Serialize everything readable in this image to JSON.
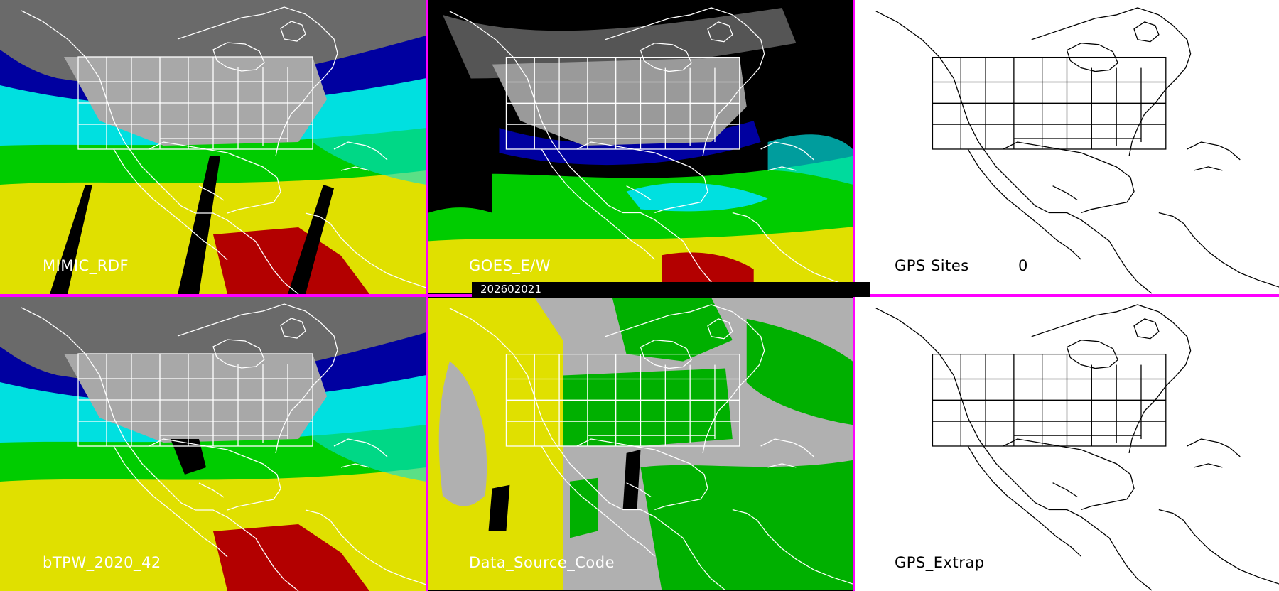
{
  "colors": {
    "divider": "#ff00ff",
    "ocean_low": "#b30000",
    "ocean_mid": "#e0e000",
    "ocean_green": "#00cc00",
    "ocean_cyan": "#00e0e0",
    "ocean_blue": "#0000a0",
    "land_gray": "#9a9a9a",
    "dsc_gray": "#b0b0b0",
    "dsc_yellow": "#e0e000",
    "dsc_green": "#00b000"
  },
  "panels": {
    "mimic": {
      "label": "MIMIC_RDF"
    },
    "goes": {
      "label": "GOES_E/W"
    },
    "gps_sites": {
      "label": "GPS Sites",
      "count": "0"
    },
    "btpw": {
      "label": "bTPW_2020_42"
    },
    "dsc": {
      "label": "Data_Source_Code"
    },
    "gps_extrap": {
      "label": "GPS_Extrap"
    }
  },
  "timestamp": "202602021"
}
